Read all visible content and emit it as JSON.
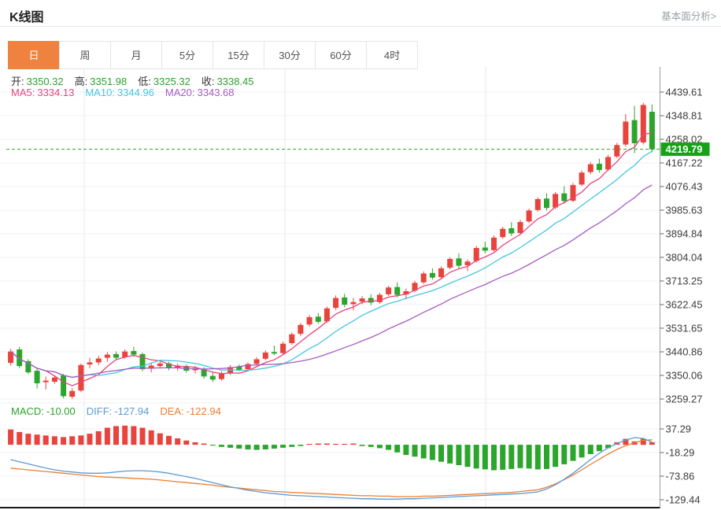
{
  "header": {
    "title": "K线图",
    "link": "基本面分析>"
  },
  "tabs": {
    "items": [
      "日",
      "周",
      "月",
      "5分",
      "15分",
      "30分",
      "60分",
      "4时"
    ],
    "active": "日"
  },
  "indicators": {
    "ohlc": [
      {
        "label": "开:",
        "value": "3350.32"
      },
      {
        "label": "高:",
        "value": "3351.98"
      },
      {
        "label": "低:",
        "value": "3325.32"
      },
      {
        "label": "收:",
        "value": "3338.45"
      }
    ],
    "ma": [
      {
        "label": "MA5:",
        "value": "3334.13",
        "color": "#e5447e"
      },
      {
        "label": "MA10:",
        "value": "3344.96",
        "color": "#45c6e2"
      },
      {
        "label": "MA20:",
        "value": "3343.68",
        "color": "#a55bc2"
      }
    ],
    "macd": [
      {
        "label": "MACD:",
        "value": "-10.00",
        "color": "#2ba32b"
      },
      {
        "label": "DIFF:",
        "value": "-127.94",
        "color": "#5b9bd5"
      },
      {
        "label": "DEA:",
        "value": "-122.94",
        "color": "#ed7d31"
      }
    ]
  },
  "chart_data": {
    "type": "candlestick",
    "main": {
      "y_ticks": [
        "4439.61",
        "4348.81",
        "4258.02",
        "4167.22",
        "4076.43",
        "3985.63",
        "3894.84",
        "3804.04",
        "3713.25",
        "3622.45",
        "3531.65",
        "3440.86",
        "3350.06",
        "3259.27"
      ],
      "y_range": [
        3259.27,
        4439.61
      ],
      "current_price": 4219.79,
      "current_price_label": "4219.79",
      "ma_periods": [
        5,
        10,
        20
      ],
      "candles": [
        [
          3398,
          3452,
          3388,
          3442
        ],
        [
          3450,
          3460,
          3378,
          3386
        ],
        [
          3405,
          3412,
          3355,
          3362
        ],
        [
          3368,
          3375,
          3300,
          3320
        ],
        [
          3324,
          3345,
          3296,
          3330
        ],
        [
          3326,
          3350,
          3318,
          3342
        ],
        [
          3350,
          3356,
          3262,
          3270
        ],
        [
          3268,
          3300,
          3260,
          3290
        ],
        [
          3292,
          3396,
          3286,
          3390
        ],
        [
          3392,
          3418,
          3378,
          3400
        ],
        [
          3400,
          3425,
          3390,
          3415
        ],
        [
          3418,
          3440,
          3402,
          3430
        ],
        [
          3432,
          3442,
          3410,
          3418
        ],
        [
          3420,
          3450,
          3414,
          3442
        ],
        [
          3444,
          3460,
          3422,
          3430
        ],
        [
          3432,
          3438,
          3366,
          3374
        ],
        [
          3376,
          3398,
          3362,
          3388
        ],
        [
          3386,
          3404,
          3376,
          3396
        ],
        [
          3396,
          3402,
          3370,
          3378
        ],
        [
          3380,
          3396,
          3368,
          3388
        ],
        [
          3386,
          3392,
          3360,
          3368
        ],
        [
          3370,
          3386,
          3358,
          3378
        ],
        [
          3376,
          3382,
          3338,
          3346
        ],
        [
          3348,
          3362,
          3326,
          3334
        ],
        [
          3336,
          3366,
          3330,
          3358
        ],
        [
          3360,
          3390,
          3352,
          3382
        ],
        [
          3384,
          3392,
          3366,
          3372
        ],
        [
          3374,
          3400,
          3368,
          3394
        ],
        [
          3394,
          3420,
          3388,
          3412
        ],
        [
          3414,
          3446,
          3408,
          3438
        ],
        [
          3440,
          3465,
          3428,
          3434
        ],
        [
          3436,
          3480,
          3430,
          3472
        ],
        [
          3474,
          3515,
          3468,
          3508
        ],
        [
          3510,
          3552,
          3502,
          3544
        ],
        [
          3546,
          3582,
          3538,
          3574
        ],
        [
          3576,
          3590,
          3548,
          3556
        ],
        [
          3558,
          3615,
          3552,
          3608
        ],
        [
          3610,
          3658,
          3602,
          3648
        ],
        [
          3650,
          3664,
          3612,
          3622
        ],
        [
          3624,
          3648,
          3600,
          3632
        ],
        [
          3634,
          3655,
          3624,
          3646
        ],
        [
          3648,
          3662,
          3620,
          3630
        ],
        [
          3632,
          3668,
          3626,
          3660
        ],
        [
          3662,
          3695,
          3656,
          3688
        ],
        [
          3690,
          3708,
          3650,
          3660
        ],
        [
          3662,
          3684,
          3642,
          3674
        ],
        [
          3676,
          3714,
          3670,
          3706
        ],
        [
          3708,
          3750,
          3702,
          3742
        ],
        [
          3744,
          3762,
          3718,
          3726
        ],
        [
          3728,
          3770,
          3722,
          3762
        ],
        [
          3764,
          3805,
          3758,
          3798
        ],
        [
          3800,
          3820,
          3762,
          3772
        ],
        [
          3774,
          3796,
          3752,
          3788
        ],
        [
          3790,
          3848,
          3784,
          3840
        ],
        [
          3842,
          3864,
          3820,
          3830
        ],
        [
          3832,
          3888,
          3826,
          3880
        ],
        [
          3882,
          3922,
          3876,
          3914
        ],
        [
          3916,
          3940,
          3886,
          3896
        ],
        [
          3898,
          3948,
          3892,
          3940
        ],
        [
          3942,
          3992,
          3936,
          3984
        ],
        [
          3986,
          4035,
          3980,
          4028
        ],
        [
          4030,
          4050,
          3984,
          3994
        ],
        [
          3996,
          4055,
          3990,
          4048
        ],
        [
          4050,
          4078,
          4010,
          4020
        ],
        [
          4022,
          4090,
          4016,
          4082
        ],
        [
          4084,
          4138,
          4078,
          4130
        ],
        [
          4132,
          4170,
          4124,
          4162
        ],
        [
          4164,
          4184,
          4130,
          4140
        ],
        [
          4142,
          4198,
          4136,
          4190
        ],
        [
          4192,
          4244,
          4186,
          4236
        ],
        [
          4238,
          4355,
          4230,
          4326
        ],
        [
          4332,
          4386,
          4205,
          4243
        ],
        [
          4246,
          4398,
          4238,
          4390
        ],
        [
          4364,
          4392,
          4208,
          4219.79
        ]
      ]
    },
    "macd": {
      "y_ticks": [
        "37.29",
        "-18.29",
        "-73.86",
        "-129.44"
      ],
      "y_range": [
        -129.44,
        37.29
      ],
      "histogram": [
        36,
        30,
        26,
        24,
        22,
        20,
        18,
        20,
        22,
        26,
        32,
        40,
        44,
        45,
        44,
        40,
        34,
        27,
        21,
        15,
        10,
        6,
        3,
        -2,
        -5,
        -7,
        -9,
        -11,
        -12,
        -11,
        -9,
        -7,
        -5,
        -3,
        2,
        3,
        3,
        2,
        2,
        3,
        -3,
        -5,
        -8,
        -12,
        -18,
        -24,
        -28,
        -32,
        -36,
        -40,
        -44,
        -48,
        -52,
        -56,
        -58,
        -60,
        -59,
        -57,
        -55,
        -56,
        -58,
        -57,
        -52,
        -46,
        -38,
        -30,
        -22,
        -15,
        -8,
        6,
        14,
        8,
        14,
        6
      ],
      "diff": [
        -35,
        -40,
        -45,
        -50,
        -55,
        -59,
        -62,
        -64,
        -66,
        -67,
        -67,
        -66,
        -64,
        -62,
        -61,
        -61,
        -62,
        -64,
        -67,
        -71,
        -75,
        -79,
        -84,
        -89,
        -94,
        -99,
        -103,
        -107,
        -110,
        -113,
        -115,
        -117,
        -119,
        -120,
        -121,
        -122,
        -123,
        -124,
        -125,
        -126,
        -127,
        -127,
        -128,
        -128,
        -128,
        -127,
        -127,
        -126,
        -125,
        -124,
        -123,
        -122,
        -121,
        -120,
        -119,
        -118,
        -117,
        -116,
        -115,
        -113,
        -111,
        -104,
        -94,
        -81,
        -67,
        -51,
        -35,
        -20,
        -7,
        3,
        11,
        17,
        15,
        6
      ],
      "dea": [
        -55,
        -57,
        -59,
        -61,
        -63,
        -65,
        -67,
        -69,
        -71,
        -73,
        -75,
        -76,
        -77,
        -78,
        -79,
        -80,
        -81,
        -83,
        -85,
        -87,
        -89,
        -91,
        -93,
        -95,
        -98,
        -100,
        -102,
        -104,
        -106,
        -108,
        -110,
        -111,
        -112,
        -113,
        -114,
        -115,
        -116,
        -117,
        -118,
        -119,
        -120,
        -120,
        -121,
        -121,
        -122,
        -122,
        -122,
        -121,
        -121,
        -120,
        -119,
        -118,
        -117,
        -116,
        -115,
        -114,
        -113,
        -112,
        -110,
        -108,
        -106,
        -100,
        -92,
        -82,
        -71,
        -59,
        -46,
        -34,
        -22,
        -11,
        -2,
        5,
        10,
        12
      ]
    },
    "colors": {
      "up": "#e8433c",
      "down": "#2ca52c",
      "price_badge": "#16a216",
      "price_line": "#2ba32b",
      "ma5": "#e5447e",
      "ma10": "#45c6e2",
      "ma20": "#a55bc2",
      "diff": "#5b9bd5",
      "dea": "#ed7d31",
      "value_green": "#2ba32b",
      "tab_active": "#f0823f"
    }
  }
}
